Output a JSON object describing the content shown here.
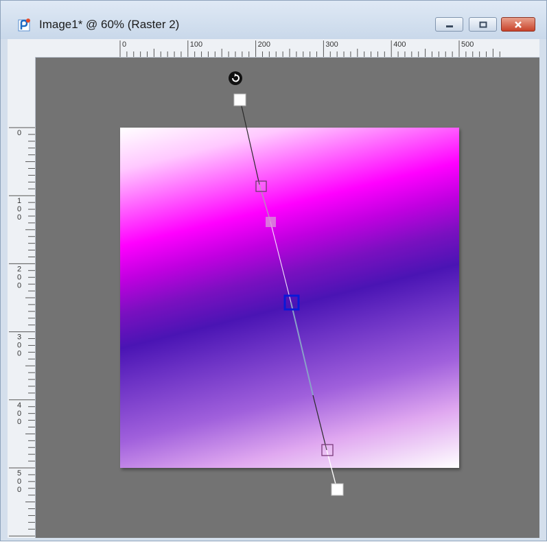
{
  "window": {
    "title": "Image1* @  60% (Raster 2)"
  },
  "window_controls": {
    "minimize_icon": "minimize-icon",
    "maximize_icon": "maximize-icon",
    "close_icon": "close-icon"
  },
  "ruler": {
    "horizontal_labels": [
      "0",
      "100",
      "200",
      "300",
      "400",
      "500"
    ],
    "vertical_labels": [
      [
        "0"
      ],
      [
        "1",
        "0",
        "0"
      ],
      [
        "2",
        "0",
        "0"
      ],
      [
        "3",
        "0",
        "0"
      ],
      [
        "4",
        "0",
        "0"
      ],
      [
        "5",
        "0",
        "0"
      ]
    ]
  },
  "zoom": "60%",
  "layer": "Raster 2",
  "colors": {
    "canvas_background": "#737373",
    "gradient_start": "#ffffff",
    "gradient_magenta": "#ff00ff",
    "gradient_violet": "#4a14b4",
    "handle_active": "#0a18d8"
  },
  "gradient_tool": {
    "rotate_icon": "rotate-icon"
  }
}
